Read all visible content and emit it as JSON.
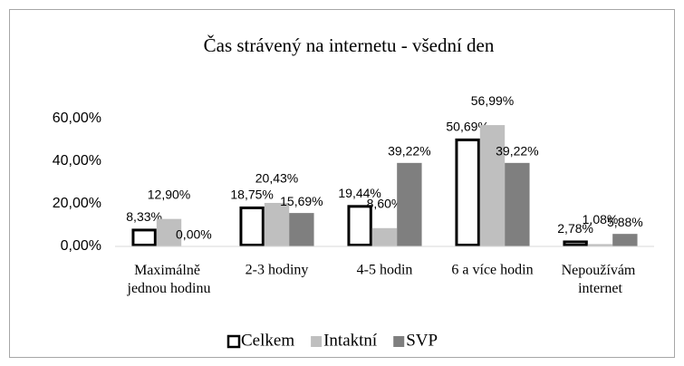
{
  "chart_data": {
    "type": "bar",
    "title": "Čas strávený na internetu - všední den",
    "categories": [
      "Maximálně jednou hodinu",
      "2-3 hodiny",
      "4-5 hodin",
      "6 a více hodin",
      "Nepoužívám internet"
    ],
    "series": [
      {
        "name": "Celkem",
        "color": "#ffffff",
        "values": [
          8.33,
          18.75,
          19.44,
          50.69,
          2.78
        ],
        "value_labels": [
          "8,33%",
          "18,75%",
          "19,44%",
          "50,69%",
          "2,78%"
        ]
      },
      {
        "name": "Intaktní",
        "color": "#bfbfbf",
        "values": [
          12.9,
          20.43,
          8.6,
          56.99,
          1.08
        ],
        "value_labels": [
          "12,90%",
          "20,43%",
          "8,60%",
          "56,99%",
          "1,08%"
        ]
      },
      {
        "name": "SVP",
        "color": "#7f7f7f",
        "values": [
          0.0,
          15.69,
          39.22,
          39.22,
          5.88
        ],
        "value_labels": [
          "0,00%",
          "15,69%",
          "39,22%",
          "39,22%",
          "5,88%"
        ]
      }
    ],
    "ylim": [
      0,
      60
    ],
    "yticks": [
      {
        "value": 0,
        "label": "0,00%"
      },
      {
        "value": 20,
        "label": "20,00%"
      },
      {
        "value": 40,
        "label": "40,00%"
      },
      {
        "value": 60,
        "label": "60,00%"
      }
    ],
    "legend": "bottom"
  }
}
